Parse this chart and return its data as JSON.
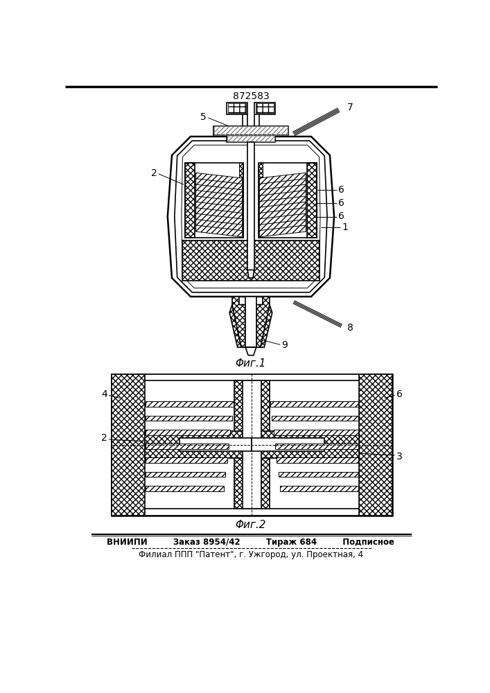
{
  "title": "872583",
  "fig1_caption": "Φиг.1",
  "fig2_caption": "Φиг.2",
  "footer_line1": "ВНИИПИ         Заказ 8954/42         Тираж 684         Подписное",
  "footer_line2": "Филиал ППП \"Патент\", г. Ужгород, ул. Проектная, 4",
  "bg_color": "#ffffff",
  "line_color": "#000000"
}
